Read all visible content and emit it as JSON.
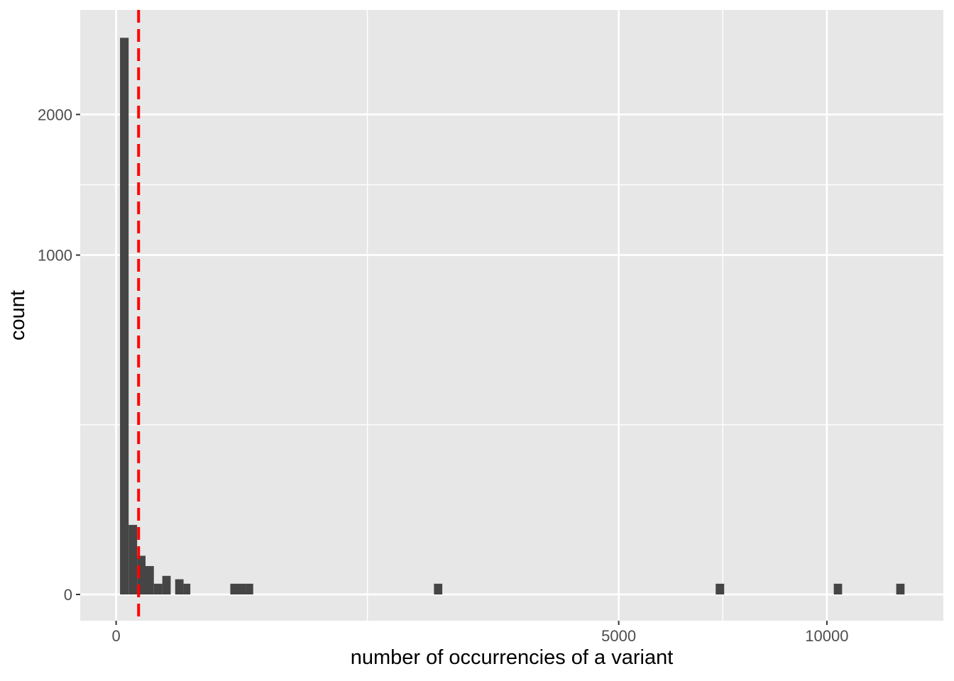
{
  "page": {
    "background": "#FFFFFF"
  },
  "chart_data": {
    "type": "bar",
    "subtype": "histogram",
    "title": "",
    "xlabel": "number of occurrencies of a variant",
    "ylabel": "count",
    "x_scale": "sqrt",
    "y_scale": "sqrt",
    "x_ticks": [
      {
        "value": 0,
        "label": "0"
      },
      {
        "value": 5000,
        "label": "5000"
      },
      {
        "value": 10000,
        "label": "10000"
      }
    ],
    "y_ticks": [
      {
        "value": 0,
        "label": "0"
      },
      {
        "value": 1000,
        "label": "1000"
      },
      {
        "value": 2000,
        "label": "2000"
      }
    ],
    "xlim": [
      0,
      13500
    ],
    "ylim": [
      0,
      2950
    ],
    "grid": {
      "major": true,
      "minor": true,
      "legend": "none"
    },
    "bins": [
      {
        "x0": 0.3,
        "x1": 3.1,
        "count": 2690
      },
      {
        "x0": 3.1,
        "x1": 8.7,
        "count": 42
      },
      {
        "x0": 8.7,
        "x1": 17.1,
        "count": 13
      },
      {
        "x0": 17.1,
        "x1": 28.2,
        "count": 7
      },
      {
        "x0": 28.2,
        "x1": 42.2,
        "count": 1
      },
      {
        "x0": 42.2,
        "x1": 58.9,
        "count": 3
      },
      {
        "x0": 69,
        "x1": 90,
        "count": 2
      },
      {
        "x0": 90,
        "x1": 109,
        "count": 1
      },
      {
        "x0": 258,
        "x1": 293,
        "count": 1
      },
      {
        "x0": 293,
        "x1": 332,
        "count": 1
      },
      {
        "x0": 332,
        "x1": 372,
        "count": 1
      },
      {
        "x0": 2000,
        "x1": 2106,
        "count": 1
      },
      {
        "x0": 7116,
        "x1": 7319,
        "count": 1
      },
      {
        "x0": 10195,
        "x1": 10433,
        "count": 1
      },
      {
        "x0": 12047,
        "x1": 12305,
        "count": 1
      }
    ],
    "vline": {
      "x": 10,
      "color": "#FF0000",
      "linetype": "dashed"
    },
    "colors": {
      "bar": "#454545",
      "panel": "#E7E7E7",
      "grid": "#FFFFFF",
      "tick_label": "#4D4D4D",
      "axis_title": "#000000",
      "tick_mark": "#333333"
    }
  }
}
